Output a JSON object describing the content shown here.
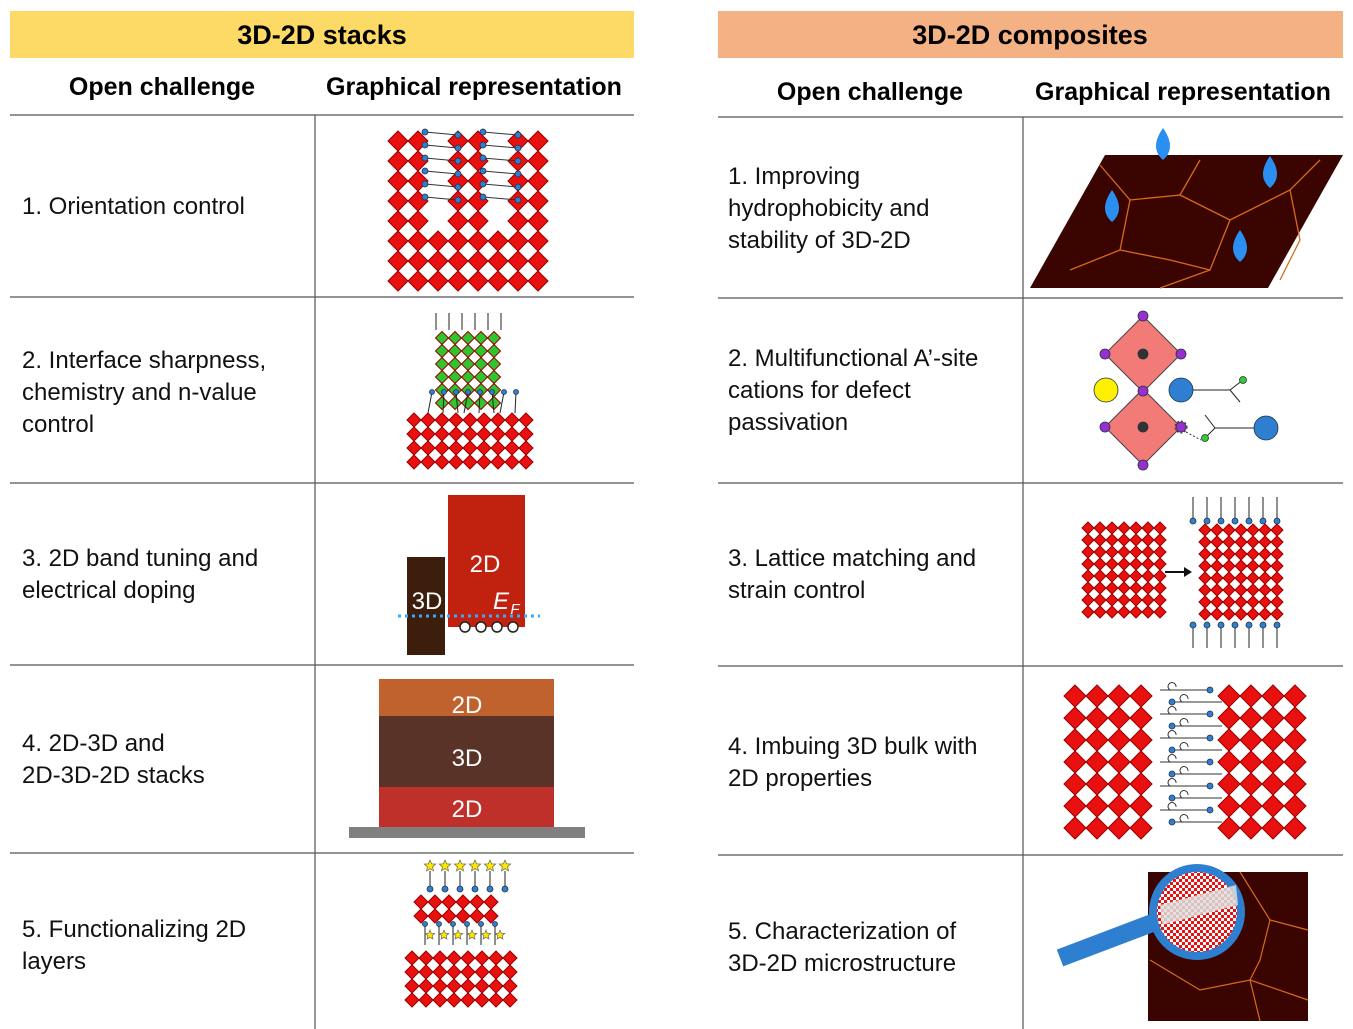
{
  "left": {
    "title": "3D-2D stacks",
    "columns": [
      "Open challenge",
      "Graphical representation"
    ],
    "rows": [
      {
        "challenge": [
          "1. Orientation control"
        ]
      },
      {
        "challenge": [
          "2. Interface sharpness,",
          "chemistry and n-value",
          "control"
        ]
      },
      {
        "challenge": [
          "3. 2D band tuning and",
          "electrical doping"
        ],
        "figure_labels": [
          "2D",
          "3D",
          "E",
          "F"
        ]
      },
      {
        "challenge": [
          "4. 2D-3D and",
          "2D-3D-2D stacks"
        ],
        "figure_labels": [
          "2D",
          "3D",
          "2D"
        ]
      },
      {
        "challenge": [
          "5. Functionalizing 2D",
          "layers"
        ]
      }
    ]
  },
  "right": {
    "title": "3D-2D composites",
    "columns": [
      "Open challenge",
      "Graphical representation"
    ],
    "rows": [
      {
        "challenge": [
          "1. Improving",
          "hydrophobicity and",
          "stability of 3D-2D"
        ]
      },
      {
        "challenge": [
          "2. Multifunctional A’-site",
          "cations for defect",
          "passivation"
        ]
      },
      {
        "challenge": [
          "3. Lattice matching and",
          "strain control"
        ]
      },
      {
        "challenge": [
          "4. Imbuing 3D bulk with",
          "2D properties"
        ]
      },
      {
        "challenge": [
          "5. Characterization of",
          "3D-2D microstructure"
        ]
      }
    ]
  }
}
